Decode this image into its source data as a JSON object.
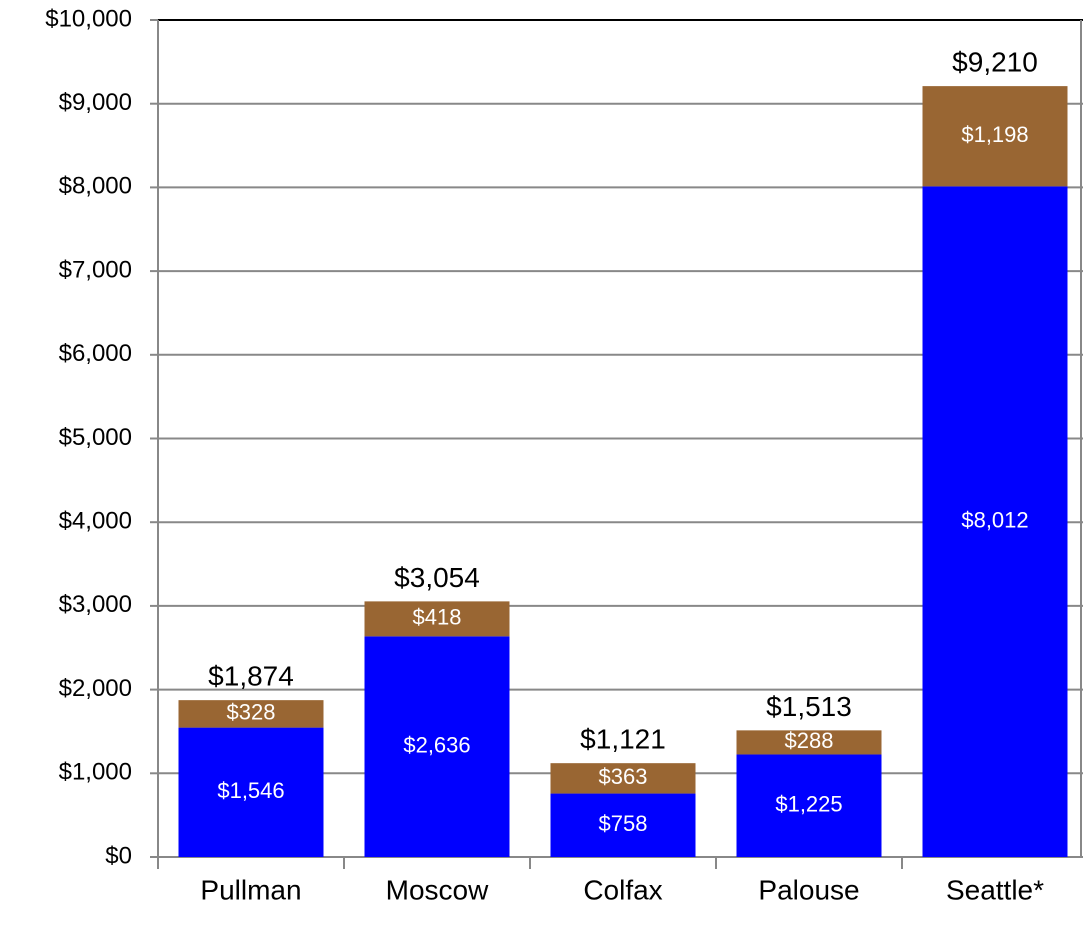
{
  "chart_data": {
    "type": "stacked_bar",
    "categories": [
      "Pullman",
      "Moscow",
      "Colfax",
      "Palouse",
      "Seattle*"
    ],
    "series": [
      {
        "color": "#0000ff",
        "values": [
          1546,
          2636,
          758,
          1225,
          8012
        ],
        "value_labels": [
          "$1,546",
          "$2,636",
          "$758",
          "$1,225",
          "$8,012"
        ]
      },
      {
        "color": "#996633",
        "values": [
          328,
          418,
          363,
          288,
          1198
        ],
        "value_labels": [
          "$328",
          "$418",
          "$363",
          "$288",
          "$1,198"
        ]
      }
    ],
    "totals": [
      1874,
      3054,
      1121,
      1513,
      9210
    ],
    "total_labels": [
      "$1,874",
      "$3,054",
      "$1,121",
      "$1,513",
      "$9,210"
    ],
    "ylim": [
      0,
      10000
    ],
    "yticks": [
      {
        "value": 0,
        "label": "$0"
      },
      {
        "value": 1000,
        "label": "$1,000"
      },
      {
        "value": 2000,
        "label": "$2,000"
      },
      {
        "value": 3000,
        "label": "$3,000"
      },
      {
        "value": 4000,
        "label": "$4,000"
      },
      {
        "value": 5000,
        "label": "$5,000"
      },
      {
        "value": 6000,
        "label": "$6,000"
      },
      {
        "value": 7000,
        "label": "$7,000"
      },
      {
        "value": 8000,
        "label": "$8,000"
      },
      {
        "value": 9000,
        "label": "$9,000"
      },
      {
        "value": 10000,
        "label": "$10,000"
      }
    ],
    "grid": true
  }
}
